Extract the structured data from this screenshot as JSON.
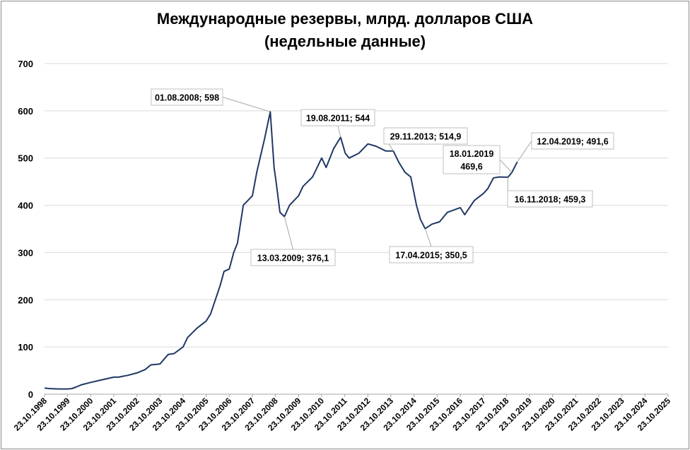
{
  "chart_data": {
    "type": "line",
    "title": "Международные резервы, млрд. долларов США",
    "subtitle": "(недельные данные)",
    "ylim": [
      0,
      700
    ],
    "yticks": [
      "0",
      "100",
      "200",
      "300",
      "400",
      "500",
      "600",
      "700"
    ],
    "xlim": [
      "1998-10-23",
      "2025-10-23"
    ],
    "xticks": [
      "23.10.1998",
      "23.10.1999",
      "23.10.2000",
      "23.10.2001",
      "23.10.2002",
      "23.10.2003",
      "23.10.2004",
      "23.10.2005",
      "23.10.2006",
      "23.10.2007",
      "23.10.2008",
      "23.10.2009",
      "23.10.2010",
      "23.10.2011",
      "23.10.2012",
      "23.10.2013",
      "23.10.2014",
      "23.10.2015",
      "23.10.2016",
      "23.10.2017",
      "23.10.2018",
      "23.10.2019",
      "23.10.2020",
      "23.10.2021",
      "23.10.2022",
      "23.10.2023",
      "23.10.2024",
      "23.10.2025"
    ],
    "grid": "horizontal",
    "line_color": "#1f3864",
    "series": [
      {
        "points": [
          [
            "1998-10-23",
            13
          ],
          [
            "1999-01-01",
            12
          ],
          [
            "1999-06-01",
            11
          ],
          [
            "1999-10-23",
            11
          ],
          [
            "2000-01-01",
            12
          ],
          [
            "2000-03-01",
            15
          ],
          [
            "2000-06-01",
            20
          ],
          [
            "2000-10-23",
            25
          ],
          [
            "2001-03-01",
            29
          ],
          [
            "2001-10-23",
            36
          ],
          [
            "2002-01-01",
            36
          ],
          [
            "2002-06-01",
            40
          ],
          [
            "2002-10-23",
            45
          ],
          [
            "2003-03-01",
            52
          ],
          [
            "2003-06-01",
            62
          ],
          [
            "2003-10-23",
            64
          ],
          [
            "2004-01-01",
            75
          ],
          [
            "2004-03-01",
            84
          ],
          [
            "2004-06-01",
            86
          ],
          [
            "2004-10-23",
            100
          ],
          [
            "2005-01-01",
            120
          ],
          [
            "2005-06-01",
            140
          ],
          [
            "2005-10-23",
            155
          ],
          [
            "2006-01-01",
            170
          ],
          [
            "2006-06-01",
            230
          ],
          [
            "2006-08-01",
            260
          ],
          [
            "2006-10-23",
            265
          ],
          [
            "2007-01-01",
            300
          ],
          [
            "2007-03-01",
            320
          ],
          [
            "2007-06-01",
            400
          ],
          [
            "2007-10-23",
            420
          ],
          [
            "2008-01-01",
            470
          ],
          [
            "2008-05-01",
            540
          ],
          [
            "2008-08-01",
            598
          ],
          [
            "2008-10-01",
            480
          ],
          [
            "2008-11-01",
            450
          ],
          [
            "2009-01-01",
            385
          ],
          [
            "2009-03-13",
            376.1
          ],
          [
            "2009-06-01",
            400
          ],
          [
            "2009-10-23",
            420
          ],
          [
            "2010-01-01",
            440
          ],
          [
            "2010-06-01",
            460
          ],
          [
            "2010-10-23",
            500
          ],
          [
            "2011-01-01",
            480
          ],
          [
            "2011-05-01",
            520
          ],
          [
            "2011-08-19",
            544
          ],
          [
            "2011-11-01",
            510
          ],
          [
            "2012-01-01",
            500
          ],
          [
            "2012-06-01",
            510
          ],
          [
            "2012-10-23",
            530
          ],
          [
            "2013-03-01",
            525
          ],
          [
            "2013-08-01",
            515
          ],
          [
            "2013-11-29",
            514.9
          ],
          [
            "2014-03-01",
            490
          ],
          [
            "2014-06-01",
            470
          ],
          [
            "2014-09-01",
            460
          ],
          [
            "2014-12-01",
            400
          ],
          [
            "2015-02-01",
            370
          ],
          [
            "2015-04-17",
            350.5
          ],
          [
            "2015-08-01",
            360
          ],
          [
            "2015-12-01",
            365
          ],
          [
            "2016-04-01",
            385
          ],
          [
            "2016-10-23",
            395
          ],
          [
            "2017-01-01",
            380
          ],
          [
            "2017-06-01",
            410
          ],
          [
            "2017-10-23",
            425
          ],
          [
            "2018-01-01",
            435
          ],
          [
            "2018-04-01",
            458
          ],
          [
            "2018-07-01",
            460
          ],
          [
            "2018-11-16",
            459.3
          ],
          [
            "2019-01-18",
            469.6
          ],
          [
            "2019-04-12",
            491.6
          ]
        ]
      }
    ],
    "annotations": [
      {
        "date": "2008-08-01",
        "value": 598,
        "lines": [
          "01.08.2008; 598"
        ]
      },
      {
        "date": "2009-03-13",
        "value": 376.1,
        "lines": [
          "13.03.2009; 376,1"
        ]
      },
      {
        "date": "2011-08-19",
        "value": 544,
        "lines": [
          "19.08.2011; 544"
        ]
      },
      {
        "date": "2013-11-29",
        "value": 514.9,
        "lines": [
          "29.11.2013; 514,9"
        ]
      },
      {
        "date": "2015-04-17",
        "value": 350.5,
        "lines": [
          "17.04.2015; 350,5"
        ]
      },
      {
        "date": "2019-01-18",
        "value": 469.6,
        "lines": [
          "18.01.2019",
          "469,6"
        ]
      },
      {
        "date": "2018-11-16",
        "value": 459.3,
        "lines": [
          "16.11.2018; 459,3"
        ]
      },
      {
        "date": "2019-04-12",
        "value": 491.6,
        "lines": [
          "12.04.2019; 491,6"
        ]
      }
    ]
  }
}
